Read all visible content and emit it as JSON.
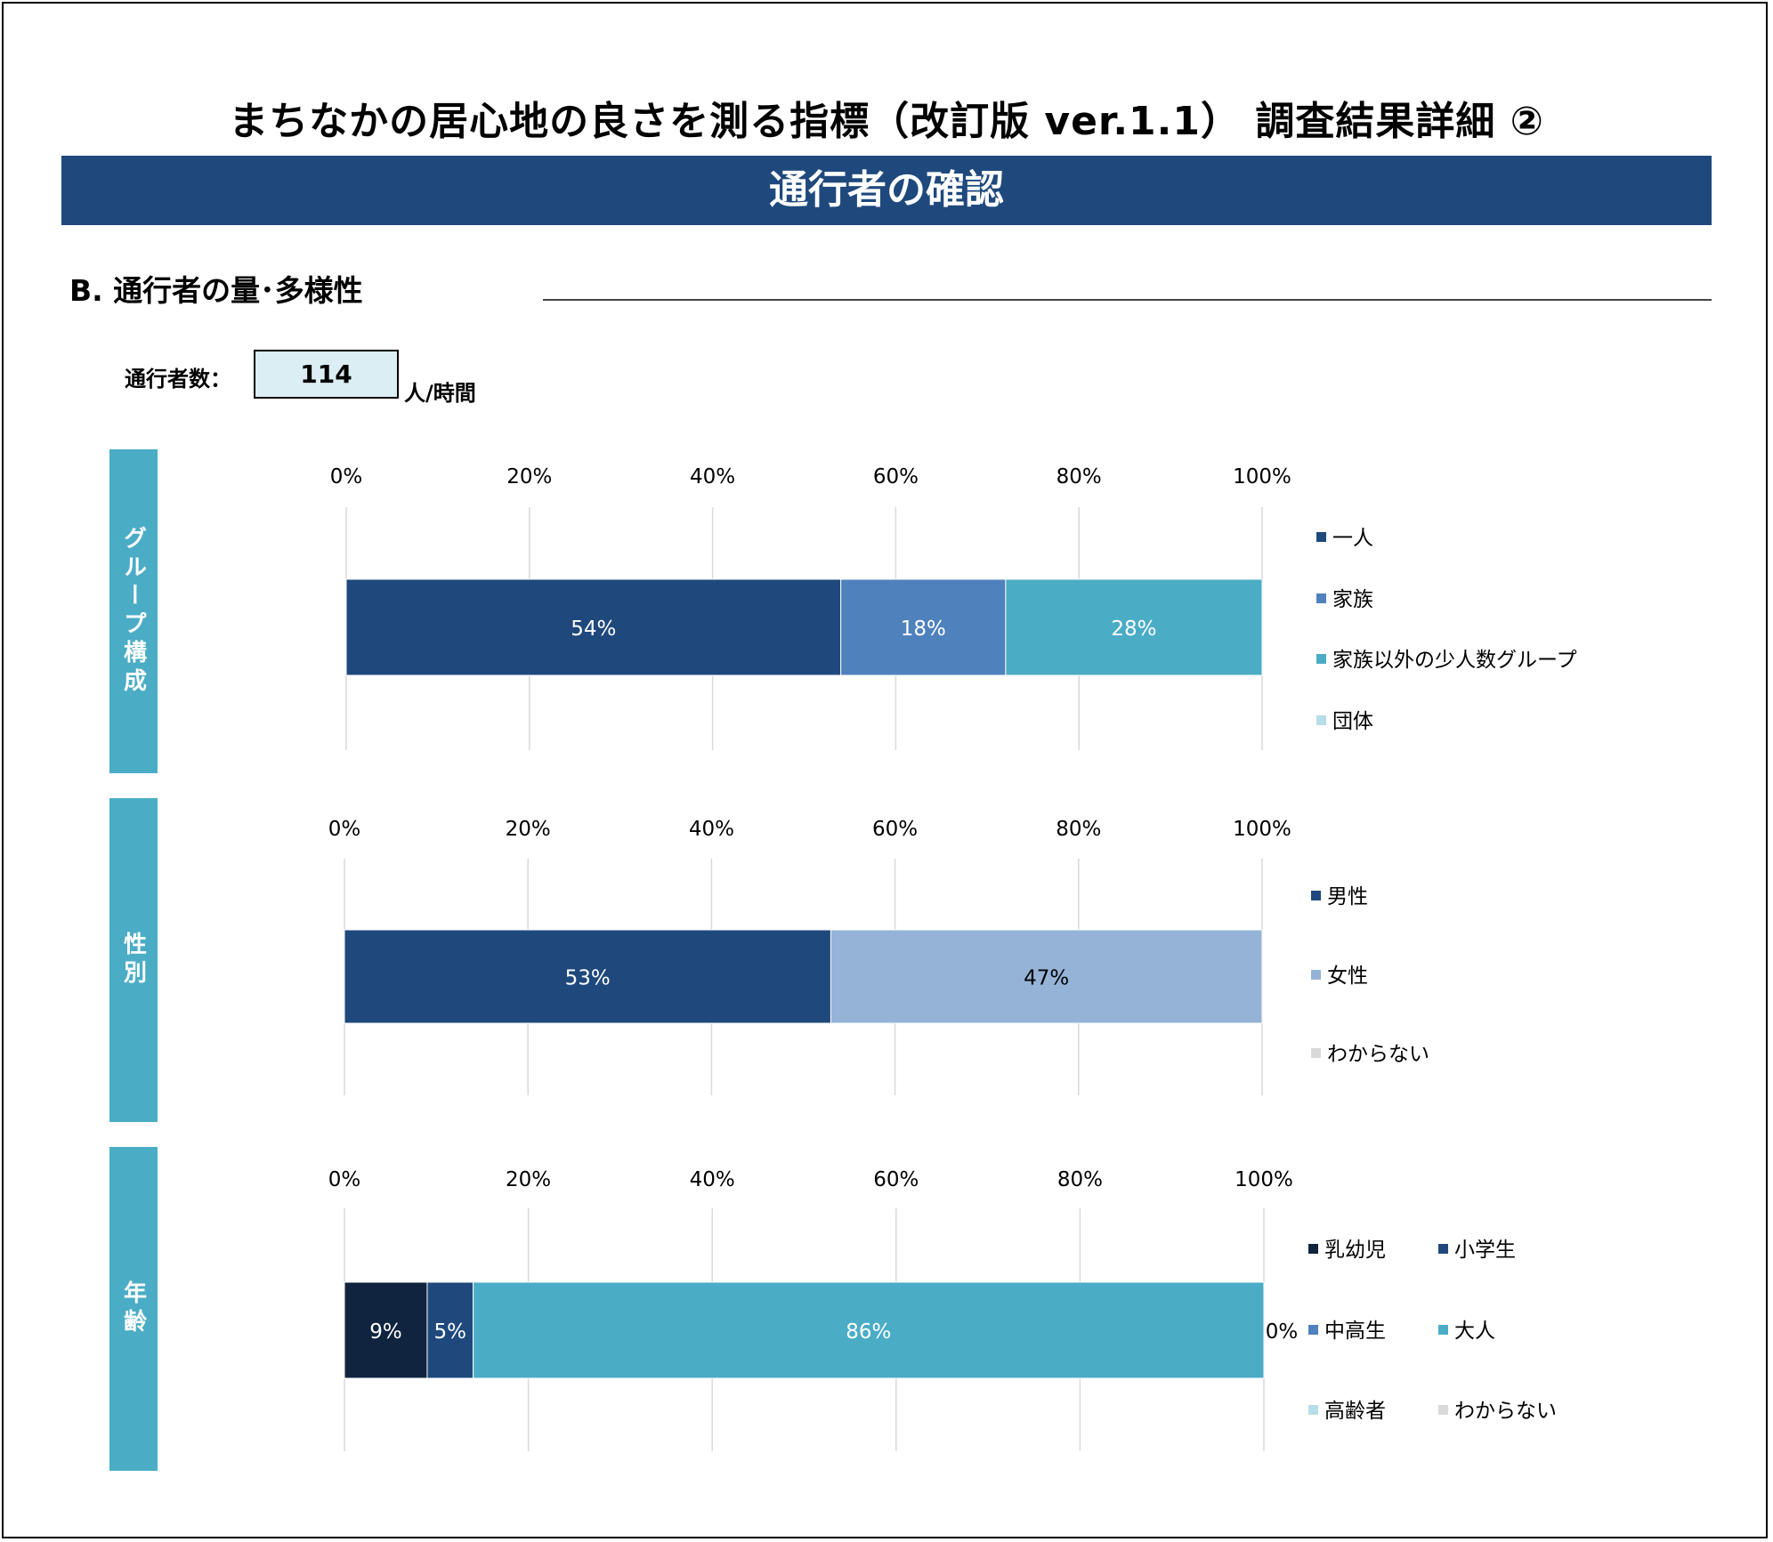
{
  "title": "まちなかの居心地の良さを測る指標（改訂版 ver.1.1） 調査結果詳細 ②",
  "banner": "通行者の確認",
  "section": {
    "title": "B.  通行者の量･多様性"
  },
  "count": {
    "label": "通行者数：",
    "value": "114",
    "unit": "人/時間"
  },
  "chart_data": [
    {
      "id": "group",
      "type": "bar",
      "orientation": "horizontal",
      "stacked": "percent",
      "side_label": "グループ構成",
      "xlim": [
        0,
        100
      ],
      "ticks": [
        "0%",
        "20%",
        "40%",
        "60%",
        "80%",
        "100%"
      ],
      "grid": true,
      "legend_position": "right",
      "series": [
        {
          "name": "一人",
          "value": 54,
          "label": "54%",
          "color": "#1f497d"
        },
        {
          "name": "家族",
          "value": 18,
          "label": "18%",
          "color": "#4f81bd"
        },
        {
          "name": "家族以外の少人数グループ",
          "value": 28,
          "label": "28%",
          "color": "#4bacc6"
        },
        {
          "name": "団体",
          "value": 0,
          "label": "",
          "color": "#b7dde8"
        }
      ]
    },
    {
      "id": "gender",
      "type": "bar",
      "orientation": "horizontal",
      "stacked": "percent",
      "side_label": "性別",
      "xlim": [
        0,
        100
      ],
      "ticks": [
        "0%",
        "20%",
        "40%",
        "60%",
        "80%",
        "100%"
      ],
      "grid": true,
      "legend_position": "right",
      "series": [
        {
          "name": "男性",
          "value": 53,
          "label": "53%",
          "color": "#1f497d"
        },
        {
          "name": "女性",
          "value": 47,
          "label": "47%",
          "color": "#95b3d7"
        },
        {
          "name": "わからない",
          "value": 0,
          "label": "",
          "color": "#d9d9d9"
        }
      ]
    },
    {
      "id": "age",
      "type": "bar",
      "orientation": "horizontal",
      "stacked": "percent",
      "side_label": "年齢",
      "xlim": [
        0,
        100
      ],
      "ticks": [
        "0%",
        "20%",
        "40%",
        "60%",
        "80%",
        "100%"
      ],
      "grid": true,
      "legend_position": "right",
      "series": [
        {
          "name": "乳幼児",
          "value": 9,
          "label": "9%",
          "color": "#10243f"
        },
        {
          "name": "小学生",
          "value": 5,
          "label": "5%",
          "color": "#1f497d"
        },
        {
          "name": "中高生",
          "value": 0,
          "label": "",
          "color": "#4f81bd"
        },
        {
          "name": "大人",
          "value": 86,
          "label": "86%",
          "color": "#4bacc6"
        },
        {
          "name": "高齢者",
          "value": 0,
          "label": "0%",
          "color": "#b7dde8"
        },
        {
          "name": "わからない",
          "value": 0,
          "label": "",
          "color": "#d9d9d9"
        }
      ]
    }
  ]
}
